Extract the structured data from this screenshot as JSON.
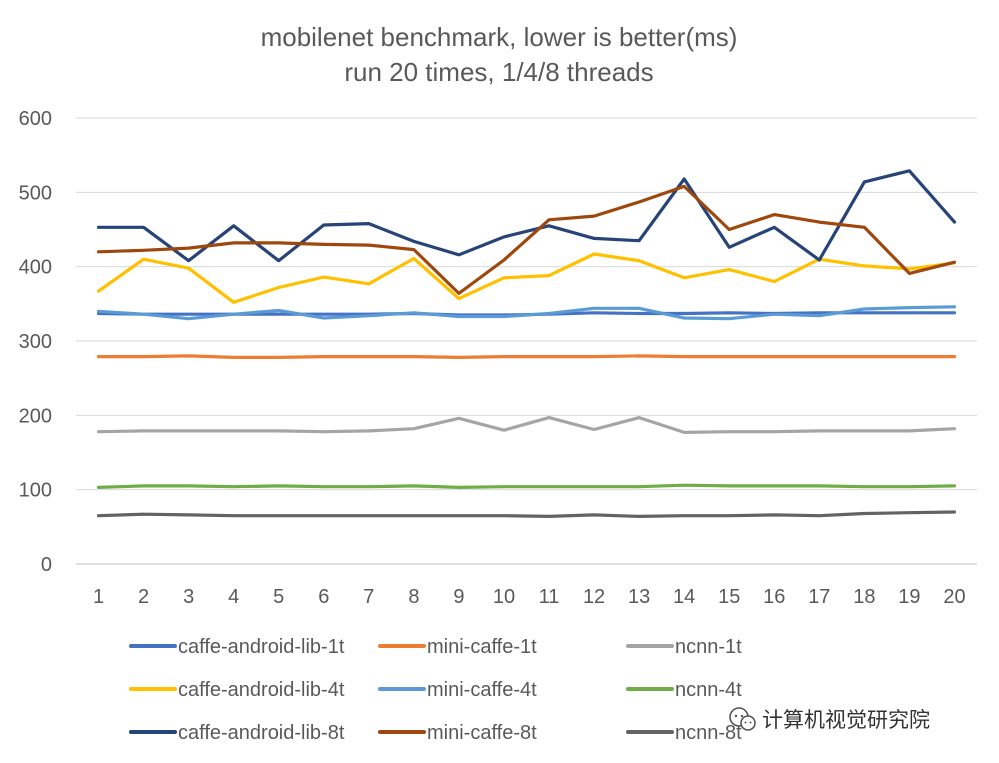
{
  "chart_data": {
    "type": "line",
    "title": "mobilenet benchmark, lower is better(ms)",
    "subtitle": "run 20 times, 1/4/8 threads",
    "xlabel": "",
    "ylabel": "",
    "ylim": [
      0,
      600
    ],
    "yticks": [
      0,
      100,
      200,
      300,
      400,
      500,
      600
    ],
    "grid": true,
    "legend_position": "bottom",
    "categories": [
      "1",
      "2",
      "3",
      "4",
      "5",
      "6",
      "7",
      "8",
      "9",
      "10",
      "11",
      "12",
      "13",
      "14",
      "15",
      "16",
      "17",
      "18",
      "19",
      "20"
    ],
    "series": [
      {
        "name": "caffe-android-lib-1t",
        "color": "#4472C4",
        "values": [
          337,
          336,
          336,
          336,
          336,
          336,
          336,
          337,
          335,
          335,
          336,
          338,
          337,
          337,
          338,
          337,
          338,
          338,
          338,
          338
        ]
      },
      {
        "name": "mini-caffe-1t",
        "color": "#ED7D31",
        "values": [
          279,
          279,
          280,
          278,
          278,
          279,
          279,
          279,
          278,
          279,
          279,
          279,
          280,
          279,
          279,
          279,
          279,
          279,
          279,
          279
        ]
      },
      {
        "name": "ncnn-1t",
        "color": "#A5A5A5",
        "values": [
          178,
          179,
          179,
          179,
          179,
          178,
          179,
          182,
          196,
          180,
          197,
          181,
          197,
          177,
          178,
          178,
          179,
          179,
          179,
          182
        ]
      },
      {
        "name": "caffe-android-lib-4t",
        "color": "#FFC000",
        "values": [
          367,
          410,
          398,
          352,
          372,
          386,
          377,
          411,
          357,
          385,
          388,
          417,
          408,
          385,
          396,
          380,
          410,
          401,
          397,
          405
        ]
      },
      {
        "name": "mini-caffe-4t",
        "color": "#5B9BD5",
        "values": [
          340,
          336,
          330,
          336,
          341,
          331,
          334,
          338,
          333,
          333,
          337,
          344,
          344,
          331,
          330,
          336,
          334,
          343,
          345,
          346
        ]
      },
      {
        "name": "ncnn-4t",
        "color": "#70AD47",
        "values": [
          103,
          105,
          105,
          104,
          105,
          104,
          104,
          105,
          103,
          104,
          104,
          104,
          104,
          106,
          105,
          105,
          105,
          104,
          104,
          105
        ]
      },
      {
        "name": "caffe-android-lib-8t",
        "color": "#264478",
        "values": [
          453,
          453,
          408,
          455,
          408,
          456,
          458,
          434,
          416,
          440,
          455,
          438,
          435,
          518,
          426,
          453,
          409,
          514,
          529,
          460
        ]
      },
      {
        "name": "mini-caffe-8t",
        "color": "#9E480E",
        "values": [
          420,
          422,
          425,
          432,
          432,
          430,
          429,
          423,
          364,
          409,
          463,
          468,
          487,
          508,
          450,
          470,
          460,
          453,
          391,
          406
        ]
      },
      {
        "name": "ncnn-8t",
        "color": "#636363",
        "values": [
          65,
          67,
          66,
          65,
          65,
          65,
          65,
          65,
          65,
          65,
          64,
          66,
          64,
          65,
          65,
          66,
          65,
          68,
          69,
          70
        ]
      }
    ]
  },
  "watermark": {
    "text": "计算机视觉研究院",
    "icon": "wechat-logo-icon"
  }
}
